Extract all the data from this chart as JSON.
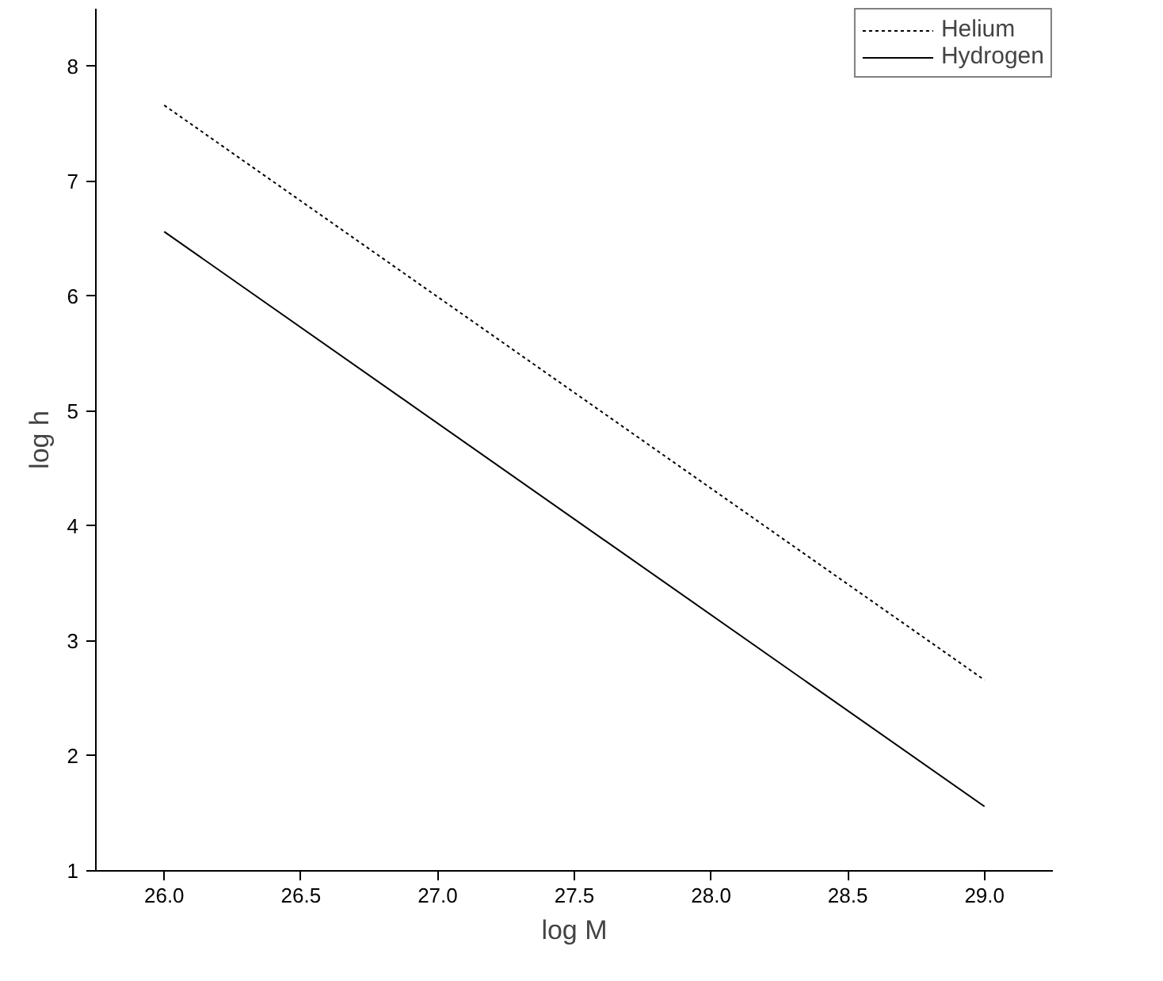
{
  "chart_data": {
    "type": "line",
    "xlabel": "log M",
    "ylabel": "log h",
    "xlim": [
      25.75,
      29.25
    ],
    "xticks": [
      {
        "value": 26,
        "label": "26.0"
      },
      {
        "value": 26.5,
        "label": "26.5"
      },
      {
        "value": 27,
        "label": "27.0"
      },
      {
        "value": 27.5,
        "label": "27.5"
      },
      {
        "value": 28,
        "label": "28.0"
      },
      {
        "value": 28.5,
        "label": "28.5"
      },
      {
        "value": 29,
        "label": "29.0"
      }
    ],
    "ylim": [
      1,
      8.5
    ],
    "yticks": [
      1,
      2,
      3,
      4,
      5,
      6,
      7,
      8
    ],
    "x": [
      26,
      29
    ],
    "series": [
      {
        "name": "Helium",
        "color": "#000000",
        "values": [
          7.66,
          2.66
        ],
        "line_style": "dotted"
      },
      {
        "name": "Hydrogen",
        "color": "#000000",
        "values": [
          6.56,
          1.56
        ],
        "line_style": "solid"
      }
    ],
    "grid": false,
    "legend": "top right",
    "marker": "none"
  }
}
